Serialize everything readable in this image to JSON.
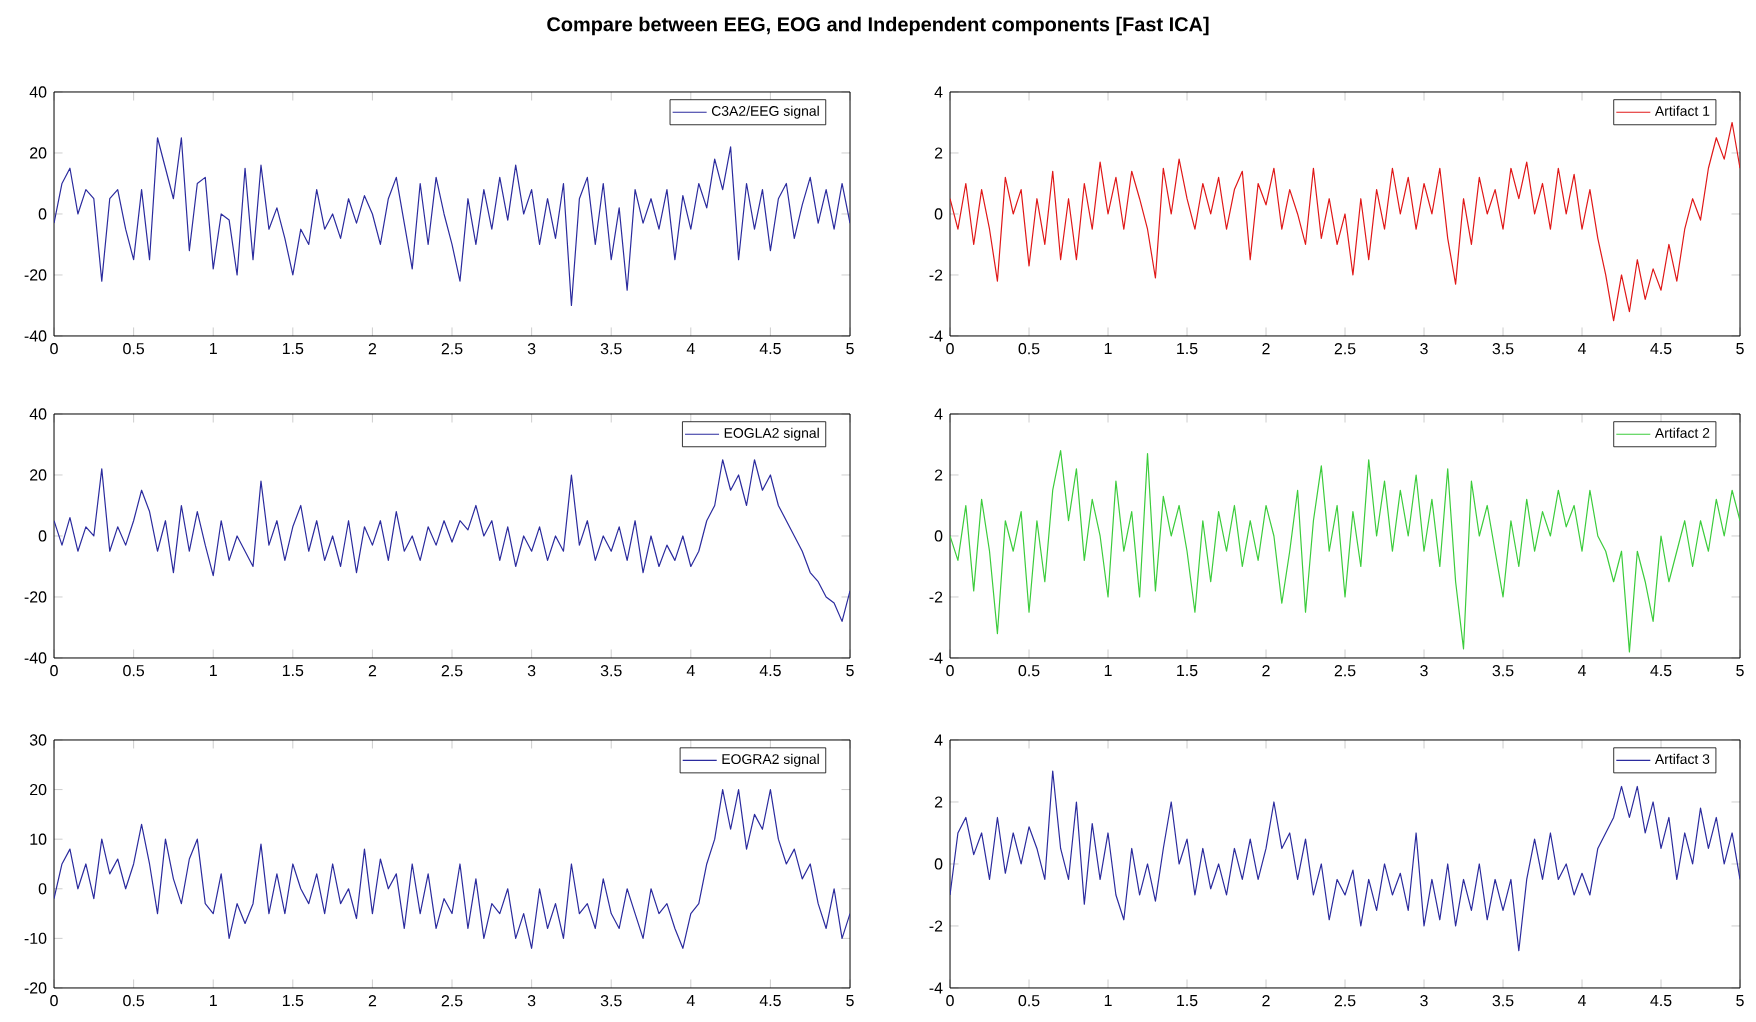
{
  "chart_data": [
    {
      "type": "line",
      "title": "Compare between EEG, EOG and Independent components [Fast ICA]",
      "xlim": [
        0,
        5
      ],
      "ylim": [
        -40,
        40
      ],
      "xticks": [
        0,
        0.5,
        1,
        1.5,
        2,
        2.5,
        3,
        3.5,
        4,
        4.5,
        5
      ],
      "yticks": [
        -40,
        -20,
        0,
        20,
        40
      ],
      "legend": "top right",
      "x": [
        0,
        0.05,
        0.1,
        0.15,
        0.2,
        0.25,
        0.3,
        0.35,
        0.4,
        0.45,
        0.5,
        0.55,
        0.6,
        0.65,
        0.7,
        0.75,
        0.8,
        0.85,
        0.9,
        0.95,
        1,
        1.05,
        1.1,
        1.15,
        1.2,
        1.25,
        1.3,
        1.35,
        1.4,
        1.45,
        1.5,
        1.55,
        1.6,
        1.65,
        1.7,
        1.75,
        1.8,
        1.85,
        1.9,
        1.95,
        2,
        2.05,
        2.1,
        2.15,
        2.2,
        2.25,
        2.3,
        2.35,
        2.4,
        2.45,
        2.5,
        2.55,
        2.6,
        2.65,
        2.7,
        2.75,
        2.8,
        2.85,
        2.9,
        2.95,
        3,
        3.05,
        3.1,
        3.15,
        3.2,
        3.25,
        3.3,
        3.35,
        3.4,
        3.45,
        3.5,
        3.55,
        3.6,
        3.65,
        3.7,
        3.75,
        3.8,
        3.85,
        3.9,
        3.95,
        4,
        4.05,
        4.1,
        4.15,
        4.2,
        4.25,
        4.3,
        4.35,
        4.4,
        4.45,
        4.5,
        4.55,
        4.6,
        4.65,
        4.7,
        4.75,
        4.8,
        4.85,
        4.9,
        4.95,
        5
      ],
      "series": [
        {
          "name": "C3A2/EEG signal",
          "color": "#2b2b9e",
          "values": [
            -3,
            10,
            15,
            0,
            8,
            5,
            -22,
            5,
            8,
            -5,
            -15,
            8,
            -15,
            25,
            15,
            5,
            25,
            -12,
            10,
            12,
            -18,
            0,
            -2,
            -20,
            15,
            -15,
            16,
            -5,
            2,
            -8,
            -20,
            -5,
            -10,
            8,
            -5,
            0,
            -8,
            5,
            -3,
            6,
            0,
            -10,
            5,
            12,
            -3,
            -18,
            10,
            -10,
            12,
            0,
            -10,
            -22,
            5,
            -10,
            8,
            -5,
            12,
            -2,
            16,
            0,
            8,
            -10,
            5,
            -8,
            10,
            -30,
            5,
            12,
            -10,
            10,
            -15,
            2,
            -25,
            8,
            -3,
            5,
            -5,
            8,
            -15,
            6,
            -5,
            10,
            2,
            18,
            8,
            22,
            -15,
            10,
            -5,
            8,
            -12,
            5,
            10,
            -8,
            3,
            12,
            -3,
            8,
            -5,
            10,
            -3
          ]
        }
      ]
    },
    {
      "type": "line",
      "xlim": [
        0,
        5
      ],
      "ylim": [
        -4,
        4
      ],
      "xticks": [
        0,
        0.5,
        1,
        1.5,
        2,
        2.5,
        3,
        3.5,
        4,
        4.5,
        5
      ],
      "yticks": [
        -4,
        -2,
        0,
        2,
        4
      ],
      "legend": "top right",
      "x": [
        0,
        0.05,
        0.1,
        0.15,
        0.2,
        0.25,
        0.3,
        0.35,
        0.4,
        0.45,
        0.5,
        0.55,
        0.6,
        0.65,
        0.7,
        0.75,
        0.8,
        0.85,
        0.9,
        0.95,
        1,
        1.05,
        1.1,
        1.15,
        1.2,
        1.25,
        1.3,
        1.35,
        1.4,
        1.45,
        1.5,
        1.55,
        1.6,
        1.65,
        1.7,
        1.75,
        1.8,
        1.85,
        1.9,
        1.95,
        2,
        2.05,
        2.1,
        2.15,
        2.2,
        2.25,
        2.3,
        2.35,
        2.4,
        2.45,
        2.5,
        2.55,
        2.6,
        2.65,
        2.7,
        2.75,
        2.8,
        2.85,
        2.9,
        2.95,
        3,
        3.05,
        3.1,
        3.15,
        3.2,
        3.25,
        3.3,
        3.35,
        3.4,
        3.45,
        3.5,
        3.55,
        3.6,
        3.65,
        3.7,
        3.75,
        3.8,
        3.85,
        3.9,
        3.95,
        4,
        4.05,
        4.1,
        4.15,
        4.2,
        4.25,
        4.3,
        4.35,
        4.4,
        4.45,
        4.5,
        4.55,
        4.6,
        4.65,
        4.7,
        4.75,
        4.8,
        4.85,
        4.9,
        4.95,
        5
      ],
      "series": [
        {
          "name": "Artifact 1",
          "color": "#e01818",
          "values": [
            0.5,
            -0.5,
            1,
            -1,
            0.8,
            -0.5,
            -2.2,
            1.2,
            0,
            0.8,
            -1.7,
            0.5,
            -1,
            1.4,
            -1.5,
            0.5,
            -1.5,
            1,
            -0.5,
            1.7,
            0,
            1.2,
            -0.5,
            1.4,
            0.5,
            -0.5,
            -2.1,
            1.5,
            0,
            1.8,
            0.5,
            -0.5,
            1,
            0,
            1.2,
            -0.5,
            0.8,
            1.4,
            -1.5,
            1,
            0.3,
            1.5,
            -0.5,
            0.8,
            0,
            -1,
            1.5,
            -0.8,
            0.5,
            -1,
            0,
            -2,
            0.5,
            -1.5,
            0.8,
            -0.5,
            1.5,
            0,
            1.2,
            -0.5,
            1,
            0,
            1.5,
            -0.8,
            -2.3,
            0.5,
            -1,
            1.2,
            0,
            0.8,
            -0.5,
            1.5,
            0.5,
            1.7,
            0,
            1,
            -0.5,
            1.5,
            0,
            1.3,
            -0.5,
            0.8,
            -0.8,
            -2,
            -3.5,
            -2,
            -3.2,
            -1.5,
            -2.8,
            -1.8,
            -2.5,
            -1,
            -2.2,
            -0.5,
            0.5,
            -0.2,
            1.5,
            2.5,
            1.8,
            3,
            1.5
          ]
        }
      ]
    },
    {
      "type": "line",
      "xlim": [
        0,
        5
      ],
      "ylim": [
        -40,
        40
      ],
      "xticks": [
        0,
        0.5,
        1,
        1.5,
        2,
        2.5,
        3,
        3.5,
        4,
        4.5,
        5
      ],
      "yticks": [
        -40,
        -20,
        0,
        20,
        40
      ],
      "legend": "top right",
      "x": [
        0,
        0.05,
        0.1,
        0.15,
        0.2,
        0.25,
        0.3,
        0.35,
        0.4,
        0.45,
        0.5,
        0.55,
        0.6,
        0.65,
        0.7,
        0.75,
        0.8,
        0.85,
        0.9,
        0.95,
        1,
        1.05,
        1.1,
        1.15,
        1.2,
        1.25,
        1.3,
        1.35,
        1.4,
        1.45,
        1.5,
        1.55,
        1.6,
        1.65,
        1.7,
        1.75,
        1.8,
        1.85,
        1.9,
        1.95,
        2,
        2.05,
        2.1,
        2.15,
        2.2,
        2.25,
        2.3,
        2.35,
        2.4,
        2.45,
        2.5,
        2.55,
        2.6,
        2.65,
        2.7,
        2.75,
        2.8,
        2.85,
        2.9,
        2.95,
        3,
        3.05,
        3.1,
        3.15,
        3.2,
        3.25,
        3.3,
        3.35,
        3.4,
        3.45,
        3.5,
        3.55,
        3.6,
        3.65,
        3.7,
        3.75,
        3.8,
        3.85,
        3.9,
        3.95,
        4,
        4.05,
        4.1,
        4.15,
        4.2,
        4.25,
        4.3,
        4.35,
        4.4,
        4.45,
        4.5,
        4.55,
        4.6,
        4.65,
        4.7,
        4.75,
        4.8,
        4.85,
        4.9,
        4.95,
        5
      ],
      "series": [
        {
          "name": "EOGLA2 signal",
          "color": "#2b2b9e",
          "values": [
            5,
            -3,
            6,
            -5,
            3,
            0,
            22,
            -5,
            3,
            -3,
            5,
            15,
            8,
            -5,
            5,
            -12,
            10,
            -5,
            8,
            -3,
            -13,
            5,
            -8,
            0,
            -5,
            -10,
            18,
            -3,
            5,
            -8,
            3,
            10,
            -5,
            5,
            -8,
            0,
            -10,
            5,
            -12,
            3,
            -3,
            5,
            -8,
            8,
            -5,
            0,
            -8,
            3,
            -3,
            5,
            -2,
            5,
            2,
            10,
            0,
            5,
            -8,
            3,
            -10,
            0,
            -5,
            3,
            -8,
            0,
            -5,
            20,
            -3,
            5,
            -8,
            0,
            -5,
            3,
            -8,
            5,
            -12,
            0,
            -10,
            -3,
            -8,
            0,
            -10,
            -5,
            5,
            10,
            25,
            15,
            20,
            10,
            25,
            15,
            20,
            10,
            5,
            0,
            -5,
            -12,
            -15,
            -20,
            -22,
            -28,
            -18
          ]
        }
      ]
    },
    {
      "type": "line",
      "xlim": [
        0,
        5
      ],
      "ylim": [
        -4,
        4
      ],
      "xticks": [
        0,
        0.5,
        1,
        1.5,
        2,
        2.5,
        3,
        3.5,
        4,
        4.5,
        5
      ],
      "yticks": [
        -4,
        -2,
        0,
        2,
        4
      ],
      "legend": "top right",
      "x": [
        0,
        0.05,
        0.1,
        0.15,
        0.2,
        0.25,
        0.3,
        0.35,
        0.4,
        0.45,
        0.5,
        0.55,
        0.6,
        0.65,
        0.7,
        0.75,
        0.8,
        0.85,
        0.9,
        0.95,
        1,
        1.05,
        1.1,
        1.15,
        1.2,
        1.25,
        1.3,
        1.35,
        1.4,
        1.45,
        1.5,
        1.55,
        1.6,
        1.65,
        1.7,
        1.75,
        1.8,
        1.85,
        1.9,
        1.95,
        2,
        2.05,
        2.1,
        2.15,
        2.2,
        2.25,
        2.3,
        2.35,
        2.4,
        2.45,
        2.5,
        2.55,
        2.6,
        2.65,
        2.7,
        2.75,
        2.8,
        2.85,
        2.9,
        2.95,
        3,
        3.05,
        3.1,
        3.15,
        3.2,
        3.25,
        3.3,
        3.35,
        3.4,
        3.45,
        3.5,
        3.55,
        3.6,
        3.65,
        3.7,
        3.75,
        3.8,
        3.85,
        3.9,
        3.95,
        4,
        4.05,
        4.1,
        4.15,
        4.2,
        4.25,
        4.3,
        4.35,
        4.4,
        4.45,
        4.5,
        4.55,
        4.6,
        4.65,
        4.7,
        4.75,
        4.8,
        4.85,
        4.9,
        4.95,
        5
      ],
      "series": [
        {
          "name": "Artifact 2",
          "color": "#3ccc3c",
          "values": [
            0,
            -0.8,
            1,
            -1.8,
            1.2,
            -0.5,
            -3.2,
            0.5,
            -0.5,
            0.8,
            -2.5,
            0.5,
            -1.5,
            1.5,
            2.8,
            0.5,
            2.2,
            -0.8,
            1.2,
            0,
            -2,
            1.8,
            -0.5,
            0.8,
            -2,
            2.7,
            -1.8,
            1.3,
            0,
            1,
            -0.5,
            -2.5,
            0.5,
            -1.5,
            0.8,
            -0.5,
            1,
            -1,
            0.5,
            -0.8,
            1,
            0,
            -2.2,
            -0.5,
            1.5,
            -2.5,
            0.5,
            2.3,
            -0.5,
            1,
            -2,
            0.8,
            -1,
            2.5,
            0,
            1.8,
            -0.5,
            1.5,
            0,
            2,
            -0.5,
            1.2,
            -1,
            2.2,
            -1.5,
            -3.7,
            1.8,
            0,
            1,
            -0.5,
            -2,
            0.5,
            -1,
            1.2,
            -0.5,
            0.8,
            0,
            1.5,
            0.3,
            1,
            -0.5,
            1.5,
            0,
            -0.5,
            -1.5,
            -0.5,
            -3.8,
            -0.5,
            -1.5,
            -2.8,
            0,
            -1.5,
            -0.5,
            0.5,
            -1,
            0.5,
            -0.5,
            1.2,
            0,
            1.5,
            0.5
          ]
        }
      ]
    },
    {
      "type": "line",
      "xlim": [
        0,
        5
      ],
      "ylim": [
        -20,
        30
      ],
      "xticks": [
        0,
        0.5,
        1,
        1.5,
        2,
        2.5,
        3,
        3.5,
        4,
        4.5,
        5
      ],
      "yticks": [
        -20,
        -10,
        0,
        10,
        20,
        30
      ],
      "legend": "top right",
      "x": [
        0,
        0.05,
        0.1,
        0.15,
        0.2,
        0.25,
        0.3,
        0.35,
        0.4,
        0.45,
        0.5,
        0.55,
        0.6,
        0.65,
        0.7,
        0.75,
        0.8,
        0.85,
        0.9,
        0.95,
        1,
        1.05,
        1.1,
        1.15,
        1.2,
        1.25,
        1.3,
        1.35,
        1.4,
        1.45,
        1.5,
        1.55,
        1.6,
        1.65,
        1.7,
        1.75,
        1.8,
        1.85,
        1.9,
        1.95,
        2,
        2.05,
        2.1,
        2.15,
        2.2,
        2.25,
        2.3,
        2.35,
        2.4,
        2.45,
        2.5,
        2.55,
        2.6,
        2.65,
        2.7,
        2.75,
        2.8,
        2.85,
        2.9,
        2.95,
        3,
        3.05,
        3.1,
        3.15,
        3.2,
        3.25,
        3.3,
        3.35,
        3.4,
        3.45,
        3.5,
        3.55,
        3.6,
        3.65,
        3.7,
        3.75,
        3.8,
        3.85,
        3.9,
        3.95,
        4,
        4.05,
        4.1,
        4.15,
        4.2,
        4.25,
        4.3,
        4.35,
        4.4,
        4.45,
        4.5,
        4.55,
        4.6,
        4.65,
        4.7,
        4.75,
        4.8,
        4.85,
        4.9,
        4.95,
        5
      ],
      "series": [
        {
          "name": "EOGRA2 signal",
          "color": "#2b2b9e",
          "values": [
            -2,
            5,
            8,
            0,
            5,
            -2,
            10,
            3,
            6,
            0,
            5,
            13,
            5,
            -5,
            10,
            2,
            -3,
            6,
            10,
            -3,
            -5,
            3,
            -10,
            -3,
            -7,
            -3,
            9,
            -5,
            3,
            -5,
            5,
            0,
            -3,
            3,
            -5,
            5,
            -3,
            0,
            -6,
            8,
            -5,
            6,
            0,
            3,
            -8,
            5,
            -5,
            3,
            -8,
            -2,
            -5,
            5,
            -8,
            2,
            -10,
            -3,
            -5,
            0,
            -10,
            -5,
            -12,
            0,
            -8,
            -3,
            -10,
            5,
            -5,
            -3,
            -8,
            2,
            -5,
            -8,
            0,
            -5,
            -10,
            0,
            -5,
            -3,
            -8,
            -12,
            -5,
            -3,
            5,
            10,
            20,
            12,
            20,
            8,
            15,
            12,
            20,
            10,
            5,
            8,
            2,
            5,
            -3,
            -8,
            0,
            -10,
            -5
          ]
        }
      ]
    },
    {
      "type": "line",
      "xlim": [
        0,
        5
      ],
      "ylim": [
        -4,
        4
      ],
      "xticks": [
        0,
        0.5,
        1,
        1.5,
        2,
        2.5,
        3,
        3.5,
        4,
        4.5,
        5
      ],
      "yticks": [
        -4,
        -2,
        0,
        2,
        4
      ],
      "legend": "top right",
      "x": [
        0,
        0.05,
        0.1,
        0.15,
        0.2,
        0.25,
        0.3,
        0.35,
        0.4,
        0.45,
        0.5,
        0.55,
        0.6,
        0.65,
        0.7,
        0.75,
        0.8,
        0.85,
        0.9,
        0.95,
        1,
        1.05,
        1.1,
        1.15,
        1.2,
        1.25,
        1.3,
        1.35,
        1.4,
        1.45,
        1.5,
        1.55,
        1.6,
        1.65,
        1.7,
        1.75,
        1.8,
        1.85,
        1.9,
        1.95,
        2,
        2.05,
        2.1,
        2.15,
        2.2,
        2.25,
        2.3,
        2.35,
        2.4,
        2.45,
        2.5,
        2.55,
        2.6,
        2.65,
        2.7,
        2.75,
        2.8,
        2.85,
        2.9,
        2.95,
        3,
        3.05,
        3.1,
        3.15,
        3.2,
        3.25,
        3.3,
        3.35,
        3.4,
        3.45,
        3.5,
        3.55,
        3.6,
        3.65,
        3.7,
        3.75,
        3.8,
        3.85,
        3.9,
        3.95,
        4,
        4.05,
        4.1,
        4.15,
        4.2,
        4.25,
        4.3,
        4.35,
        4.4,
        4.45,
        4.5,
        4.55,
        4.6,
        4.65,
        4.7,
        4.75,
        4.8,
        4.85,
        4.9,
        4.95,
        5
      ],
      "series": [
        {
          "name": "Artifact 3",
          "color": "#2b2b9e",
          "values": [
            -1,
            1,
            1.5,
            0.3,
            1,
            -0.5,
            1.5,
            -0.3,
            1,
            0,
            1.2,
            0.5,
            -0.5,
            3,
            0.5,
            -0.5,
            2,
            -1.3,
            1.3,
            -0.5,
            1,
            -1,
            -1.8,
            0.5,
            -1,
            0,
            -1.2,
            0.5,
            2,
            0,
            0.8,
            -1,
            0.5,
            -0.8,
            0,
            -1,
            0.5,
            -0.5,
            0.8,
            -0.5,
            0.5,
            2,
            0.5,
            1,
            -0.5,
            0.8,
            -1,
            0,
            -1.8,
            -0.5,
            -1,
            -0.2,
            -2,
            -0.5,
            -1.5,
            0,
            -1,
            -0.3,
            -1.5,
            1,
            -2,
            -0.5,
            -1.8,
            0,
            -2,
            -0.5,
            -1.5,
            0,
            -1.8,
            -0.5,
            -1.5,
            -0.5,
            -2.8,
            -0.5,
            0.8,
            -0.5,
            1,
            -0.5,
            0,
            -1,
            -0.3,
            -1,
            0.5,
            1,
            1.5,
            2.5,
            1.5,
            2.5,
            1,
            2,
            0.5,
            1.5,
            -0.5,
            1,
            0,
            1.8,
            0.5,
            1.5,
            0,
            1,
            -0.5
          ]
        }
      ]
    }
  ]
}
